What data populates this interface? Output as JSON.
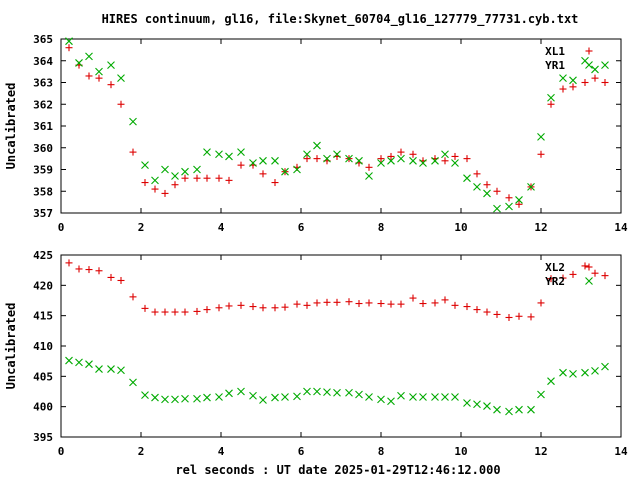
{
  "title": "HIRES continuum, gl16, file:Skynet_60704_gl16_127779_77731.cyb.txt",
  "xlabel": "rel seconds : UT date 2025-01-29T12:46:12.000",
  "chart_data": [
    {
      "type": "scatter",
      "ylabel": "Uncalibrated",
      "xlim": [
        0,
        14
      ],
      "ylim": [
        357,
        365
      ],
      "xticks": [
        0,
        2,
        4,
        6,
        8,
        10,
        12,
        14
      ],
      "yticks": [
        357,
        358,
        359,
        360,
        361,
        362,
        363,
        364,
        365
      ],
      "grid": false,
      "legend": "top-right",
      "series": [
        {
          "name": "XL1",
          "marker": "plus",
          "color": "#dd0000",
          "x": [
            0.2,
            0.45,
            0.7,
            0.95,
            1.25,
            1.5,
            1.8,
            2.1,
            2.35,
            2.6,
            2.85,
            3.1,
            3.4,
            3.65,
            3.95,
            4.2,
            4.5,
            4.8,
            5.05,
            5.35,
            5.6,
            5.9,
            6.15,
            6.4,
            6.65,
            6.9,
            7.2,
            7.45,
            7.7,
            8.0,
            8.25,
            8.5,
            8.8,
            9.05,
            9.35,
            9.6,
            9.85,
            10.15,
            10.4,
            10.65,
            10.9,
            11.2,
            11.45,
            11.75,
            12.0,
            12.25,
            12.55,
            12.8,
            13.1,
            13.35,
            13.6
          ],
          "values": [
            364.6,
            363.8,
            363.3,
            363.2,
            362.9,
            362.0,
            359.8,
            358.4,
            358.1,
            357.9,
            358.3,
            358.6,
            358.6,
            358.6,
            358.6,
            358.5,
            359.2,
            359.2,
            358.8,
            358.4,
            358.9,
            359.1,
            359.5,
            359.5,
            359.4,
            359.6,
            359.5,
            359.3,
            359.1,
            359.5,
            359.6,
            359.8,
            359.7,
            359.4,
            359.5,
            359.4,
            359.6,
            359.5,
            358.8,
            358.3,
            358.0,
            357.7,
            357.4,
            358.2,
            359.7,
            362.0,
            362.7,
            362.8,
            363.0,
            363.2,
            363.0
          ]
        },
        {
          "name": "YR1",
          "marker": "cross",
          "color": "#00aa00",
          "x": [
            0.2,
            0.45,
            0.7,
            0.95,
            1.25,
            1.5,
            1.8,
            2.1,
            2.35,
            2.6,
            2.85,
            3.1,
            3.4,
            3.65,
            3.95,
            4.2,
            4.5,
            4.8,
            5.05,
            5.35,
            5.6,
            5.9,
            6.15,
            6.4,
            6.65,
            6.9,
            7.2,
            7.45,
            7.7,
            8.0,
            8.25,
            8.5,
            8.8,
            9.05,
            9.35,
            9.6,
            9.85,
            10.15,
            10.4,
            10.65,
            10.9,
            11.2,
            11.45,
            11.75,
            12.0,
            12.25,
            12.55,
            12.8,
            13.1,
            13.35,
            13.6
          ],
          "values": [
            364.9,
            363.9,
            364.2,
            363.5,
            363.8,
            363.2,
            361.2,
            359.2,
            358.5,
            359.0,
            358.7,
            358.9,
            359.0,
            359.8,
            359.7,
            359.6,
            359.8,
            359.3,
            359.4,
            359.4,
            358.9,
            359.0,
            359.7,
            360.1,
            359.5,
            359.7,
            359.5,
            359.4,
            358.7,
            359.3,
            359.4,
            359.5,
            359.4,
            359.3,
            359.4,
            359.7,
            359.3,
            358.6,
            358.2,
            357.9,
            357.2,
            357.3,
            357.6,
            358.2,
            360.5,
            362.3,
            363.2,
            363.1,
            364.0,
            363.6,
            363.8
          ]
        }
      ]
    },
    {
      "type": "scatter",
      "ylabel": "Uncalibrated",
      "xlim": [
        0,
        14
      ],
      "ylim": [
        395,
        425
      ],
      "xticks": [
        0,
        2,
        4,
        6,
        8,
        10,
        12,
        14
      ],
      "yticks": [
        395,
        400,
        405,
        410,
        415,
        420,
        425
      ],
      "grid": false,
      "legend": "top-right",
      "series": [
        {
          "name": "XL2",
          "marker": "plus",
          "color": "#dd0000",
          "x": [
            0.2,
            0.45,
            0.7,
            0.95,
            1.25,
            1.5,
            1.8,
            2.1,
            2.35,
            2.6,
            2.85,
            3.1,
            3.4,
            3.65,
            3.95,
            4.2,
            4.5,
            4.8,
            5.05,
            5.35,
            5.6,
            5.9,
            6.15,
            6.4,
            6.65,
            6.9,
            7.2,
            7.45,
            7.7,
            8.0,
            8.25,
            8.5,
            8.8,
            9.05,
            9.35,
            9.6,
            9.85,
            10.15,
            10.4,
            10.65,
            10.9,
            11.2,
            11.45,
            11.75,
            12.0,
            12.25,
            12.55,
            12.8,
            13.1,
            13.35,
            13.6
          ],
          "values": [
            423.7,
            422.7,
            422.6,
            422.4,
            421.3,
            420.8,
            418.1,
            416.2,
            415.6,
            415.6,
            415.6,
            415.6,
            415.7,
            416.0,
            416.3,
            416.6,
            416.7,
            416.5,
            416.3,
            416.3,
            416.4,
            416.9,
            416.7,
            417.1,
            417.2,
            417.2,
            417.3,
            417.0,
            417.1,
            417.0,
            416.9,
            416.9,
            417.9,
            417.0,
            417.1,
            417.6,
            416.7,
            416.5,
            416.0,
            415.6,
            415.2,
            414.7,
            414.9,
            414.8,
            417.1,
            421.1,
            421.2,
            421.8,
            423.2,
            422.0,
            421.6
          ]
        },
        {
          "name": "YR2",
          "marker": "cross",
          "color": "#00aa00",
          "x": [
            0.2,
            0.45,
            0.7,
            0.95,
            1.25,
            1.5,
            1.8,
            2.1,
            2.35,
            2.6,
            2.85,
            3.1,
            3.4,
            3.65,
            3.95,
            4.2,
            4.5,
            4.8,
            5.05,
            5.35,
            5.6,
            5.9,
            6.15,
            6.4,
            6.65,
            6.9,
            7.2,
            7.45,
            7.7,
            8.0,
            8.25,
            8.5,
            8.8,
            9.05,
            9.35,
            9.6,
            9.85,
            10.15,
            10.4,
            10.65,
            10.9,
            11.2,
            11.45,
            11.75,
            12.0,
            12.25,
            12.55,
            12.8,
            13.1,
            13.35,
            13.6
          ],
          "values": [
            407.6,
            407.3,
            407.0,
            406.2,
            406.2,
            406.0,
            404.0,
            401.9,
            401.5,
            401.2,
            401.2,
            401.3,
            401.3,
            401.5,
            401.6,
            402.2,
            402.5,
            401.8,
            401.1,
            401.5,
            401.6,
            401.7,
            402.5,
            402.5,
            402.4,
            402.3,
            402.3,
            402.0,
            401.6,
            401.2,
            400.9,
            401.8,
            401.6,
            401.6,
            401.6,
            401.6,
            401.6,
            400.6,
            400.4,
            400.1,
            399.5,
            399.2,
            399.5,
            399.5,
            402.0,
            404.2,
            405.6,
            405.4,
            405.6,
            405.9,
            406.6
          ]
        }
      ]
    }
  ]
}
